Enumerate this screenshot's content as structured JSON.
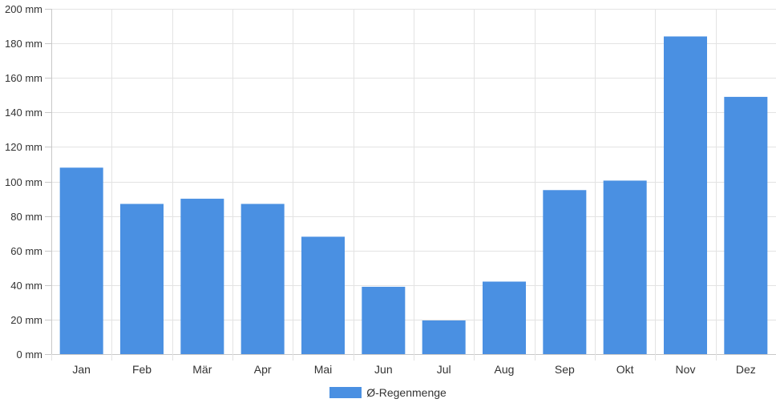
{
  "colors": {
    "bar": "#4a90e2",
    "grid": "#e3e3e3",
    "axis": "#c8c8c8",
    "text": "#333333"
  },
  "chart_data": {
    "type": "bar",
    "categories": [
      "Jan",
      "Feb",
      "Mär",
      "Apr",
      "Mai",
      "Jun",
      "Jul",
      "Aug",
      "Sep",
      "Okt",
      "Nov",
      "Dez"
    ],
    "series": [
      {
        "name": "Ø-Regenmenge",
        "values": [
          108,
          87,
          90,
          87,
          68,
          39,
          19.5,
          42,
          95,
          100.5,
          184,
          149
        ]
      }
    ],
    "ylim": [
      0,
      200
    ],
    "yticks": [
      0,
      20,
      40,
      60,
      80,
      100,
      120,
      140,
      160,
      180,
      200
    ],
    "ytick_labels": [
      "0 mm",
      "20 mm",
      "40 mm",
      "60 mm",
      "80 mm",
      "100 mm",
      "120 mm",
      "140 mm",
      "160 mm",
      "180 mm",
      "200 mm"
    ],
    "grid": true,
    "legend_position": "bottom-center"
  }
}
